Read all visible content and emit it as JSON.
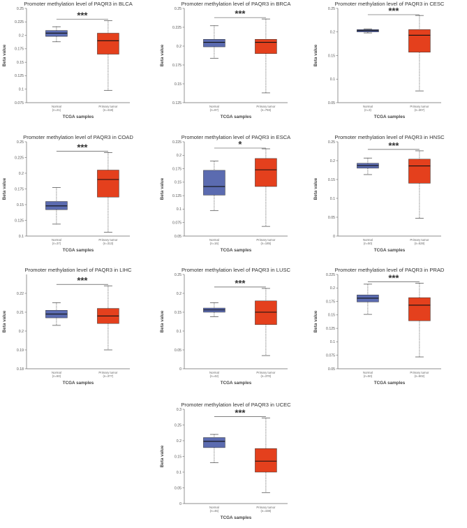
{
  "colors": {
    "normal": "#5b6bb0",
    "tumor": "#e4401d",
    "median": "#111111",
    "axis": "#666666"
  },
  "chart_data": [
    {
      "type": "box",
      "title": "Promoter methylation level of PAQR3 in BLCA",
      "xlabel": "TCGA samples",
      "ylabel": "Beta value",
      "ylim": [
        0.075,
        0.25
      ],
      "yticks": [
        "0.075",
        "0.1",
        "0.125",
        "0.15",
        "0.175",
        "0.2",
        "0.225",
        "0.25"
      ],
      "categories": [
        "Normal",
        "Primary tumor"
      ],
      "counts": [
        "(n=21)",
        "(n=418)"
      ],
      "significance": "***",
      "boxes": [
        {
          "min": 0.188,
          "q1": 0.198,
          "median": 0.204,
          "q3": 0.209,
          "max": 0.216
        },
        {
          "min": 0.098,
          "q1": 0.165,
          "median": 0.19,
          "q3": 0.204,
          "max": 0.227
        }
      ]
    },
    {
      "type": "box",
      "title": "Promoter methylation level of PAQR3 in BRCA",
      "xlabel": "TCGA samples",
      "ylabel": "Beta value",
      "ylim": [
        0.125,
        0.25
      ],
      "yticks": [
        "0.125",
        "0.15",
        "0.175",
        "0.2",
        "0.225",
        "0.25"
      ],
      "categories": [
        "Normal",
        "Primary tumor"
      ],
      "counts": [
        "(n=97)",
        "(n=793)"
      ],
      "significance": "***",
      "boxes": [
        {
          "min": 0.184,
          "q1": 0.199,
          "median": 0.205,
          "q3": 0.209,
          "max": 0.227
        },
        {
          "min": 0.138,
          "q1": 0.19,
          "median": 0.205,
          "q3": 0.209,
          "max": 0.236
        }
      ]
    },
    {
      "type": "box",
      "title": "Promoter methylation level of PAQR3 in CESC",
      "xlabel": "TCGA samples",
      "ylabel": "Beta value",
      "ylim": [
        0.05,
        0.25
      ],
      "yticks": [
        "0.05",
        "0.1",
        "0.15",
        "0.2",
        "0.25"
      ],
      "categories": [
        "Normal",
        "Primary tumor"
      ],
      "counts": [
        "(n=3)",
        "(n=307)"
      ],
      "significance": "***",
      "boxes": [
        {
          "min": 0.198,
          "q1": 0.2,
          "median": 0.203,
          "q3": 0.205,
          "max": 0.206
        },
        {
          "min": 0.075,
          "q1": 0.157,
          "median": 0.193,
          "q3": 0.205,
          "max": 0.235
        }
      ]
    },
    {
      "type": "box",
      "title": "Promoter methylation level of PAQR3 in COAD",
      "xlabel": "TCGA samples",
      "ylabel": "Beta value",
      "ylim": [
        0.1,
        0.25
      ],
      "yticks": [
        "0.1",
        "0.125",
        "0.15",
        "0.175",
        "0.2",
        "0.225",
        "0.25"
      ],
      "categories": [
        "Normal",
        "Primary tumor"
      ],
      "counts": [
        "(n=37)",
        "(n=313)"
      ],
      "significance": "***",
      "boxes": [
        {
          "min": 0.119,
          "q1": 0.142,
          "median": 0.148,
          "q3": 0.155,
          "max": 0.177
        },
        {
          "min": 0.106,
          "q1": 0.162,
          "median": 0.19,
          "q3": 0.205,
          "max": 0.233
        }
      ]
    },
    {
      "type": "box",
      "title": "Promoter methylation level of PAQR3 in ESCA",
      "xlabel": "TCGA samples",
      "ylabel": "Beta value",
      "ylim": [
        0.05,
        0.225
      ],
      "yticks": [
        "0.05",
        "0.075",
        "0.1",
        "0.125",
        "0.15",
        "0.175",
        "0.2",
        "0.225"
      ],
      "categories": [
        "Normal",
        "Primary tumor"
      ],
      "counts": [
        "(n=16)",
        "(n=185)"
      ],
      "significance": "*",
      "boxes": [
        {
          "min": 0.097,
          "q1": 0.126,
          "median": 0.142,
          "q3": 0.172,
          "max": 0.189
        },
        {
          "min": 0.068,
          "q1": 0.142,
          "median": 0.173,
          "q3": 0.194,
          "max": 0.212
        }
      ]
    },
    {
      "type": "box",
      "title": "Promoter methylation level of PAQR3 in HNSC",
      "xlabel": "TCGA samples",
      "ylabel": "Beta value",
      "ylim": [
        0.0,
        0.25
      ],
      "yticks": [
        "0",
        "0.05",
        "0.1",
        "0.15",
        "0.2",
        "0.25"
      ],
      "categories": [
        "Normal",
        "Primary tumor"
      ],
      "counts": [
        "(n=50)",
        "(n=528)"
      ],
      "significance": "***",
      "boxes": [
        {
          "min": 0.163,
          "q1": 0.18,
          "median": 0.187,
          "q3": 0.193,
          "max": 0.207
        },
        {
          "min": 0.047,
          "q1": 0.14,
          "median": 0.186,
          "q3": 0.204,
          "max": 0.226
        }
      ]
    },
    {
      "type": "box",
      "title": "Promoter methylation level of PAQR3 in LIHC",
      "xlabel": "TCGA samples",
      "ylabel": "Beta value",
      "ylim": [
        0.18,
        0.23
      ],
      "yticks": [
        "0.18",
        "0.19",
        "0.2",
        "0.21",
        "0.22"
      ],
      "categories": [
        "Normal",
        "Primary tumor"
      ],
      "counts": [
        "(n=50)",
        "(n=377)"
      ],
      "significance": "***",
      "boxes": [
        {
          "min": 0.203,
          "q1": 0.207,
          "median": 0.209,
          "q3": 0.211,
          "max": 0.215
        },
        {
          "min": 0.19,
          "q1": 0.204,
          "median": 0.208,
          "q3": 0.212,
          "max": 0.224
        }
      ]
    },
    {
      "type": "box",
      "title": "Promoter methylation level of PAQR3 in LUSC",
      "xlabel": "TCGA samples",
      "ylabel": "Beta value",
      "ylim": [
        0.0,
        0.25
      ],
      "yticks": [
        "0",
        "0.05",
        "0.1",
        "0.15",
        "0.2",
        "0.25"
      ],
      "categories": [
        "Normal",
        "Primary tumor"
      ],
      "counts": [
        "(n=42)",
        "(n=370)"
      ],
      "significance": "***",
      "boxes": [
        {
          "min": 0.138,
          "q1": 0.15,
          "median": 0.156,
          "q3": 0.161,
          "max": 0.175
        },
        {
          "min": 0.035,
          "q1": 0.117,
          "median": 0.15,
          "q3": 0.18,
          "max": 0.213
        }
      ]
    },
    {
      "type": "box",
      "title": "Promoter methylation level of PAQR3 in PRAD",
      "xlabel": "TCGA samples",
      "ylabel": "Beta value",
      "ylim": [
        0.05,
        0.225
      ],
      "yticks": [
        "0.05",
        "0.075",
        "0.1",
        "0.125",
        "0.15",
        "0.175",
        "0.2",
        "0.225"
      ],
      "categories": [
        "Normal",
        "Primary tumor"
      ],
      "counts": [
        "(n=50)",
        "(n=502)"
      ],
      "significance": "***",
      "boxes": [
        {
          "min": 0.151,
          "q1": 0.174,
          "median": 0.181,
          "q3": 0.187,
          "max": 0.207
        },
        {
          "min": 0.072,
          "q1": 0.139,
          "median": 0.168,
          "q3": 0.182,
          "max": 0.209
        }
      ]
    },
    {
      "type": "box",
      "title": "Promoter methylation level of PAQR3 in UCEC",
      "xlabel": "TCGA samples",
      "ylabel": "Beta value",
      "ylim": [
        0.0,
        0.3
      ],
      "yticks": [
        "0",
        "0.05",
        "0.1",
        "0.15",
        "0.2",
        "0.25",
        "0.3"
      ],
      "categories": [
        "Normal",
        "Primary tumor"
      ],
      "counts": [
        "(n=46)",
        "(n=438)"
      ],
      "significance": "***",
      "boxes": [
        {
          "min": 0.13,
          "q1": 0.178,
          "median": 0.198,
          "q3": 0.21,
          "max": 0.22
        },
        {
          "min": 0.035,
          "q1": 0.1,
          "median": 0.135,
          "q3": 0.175,
          "max": 0.272
        }
      ]
    }
  ]
}
